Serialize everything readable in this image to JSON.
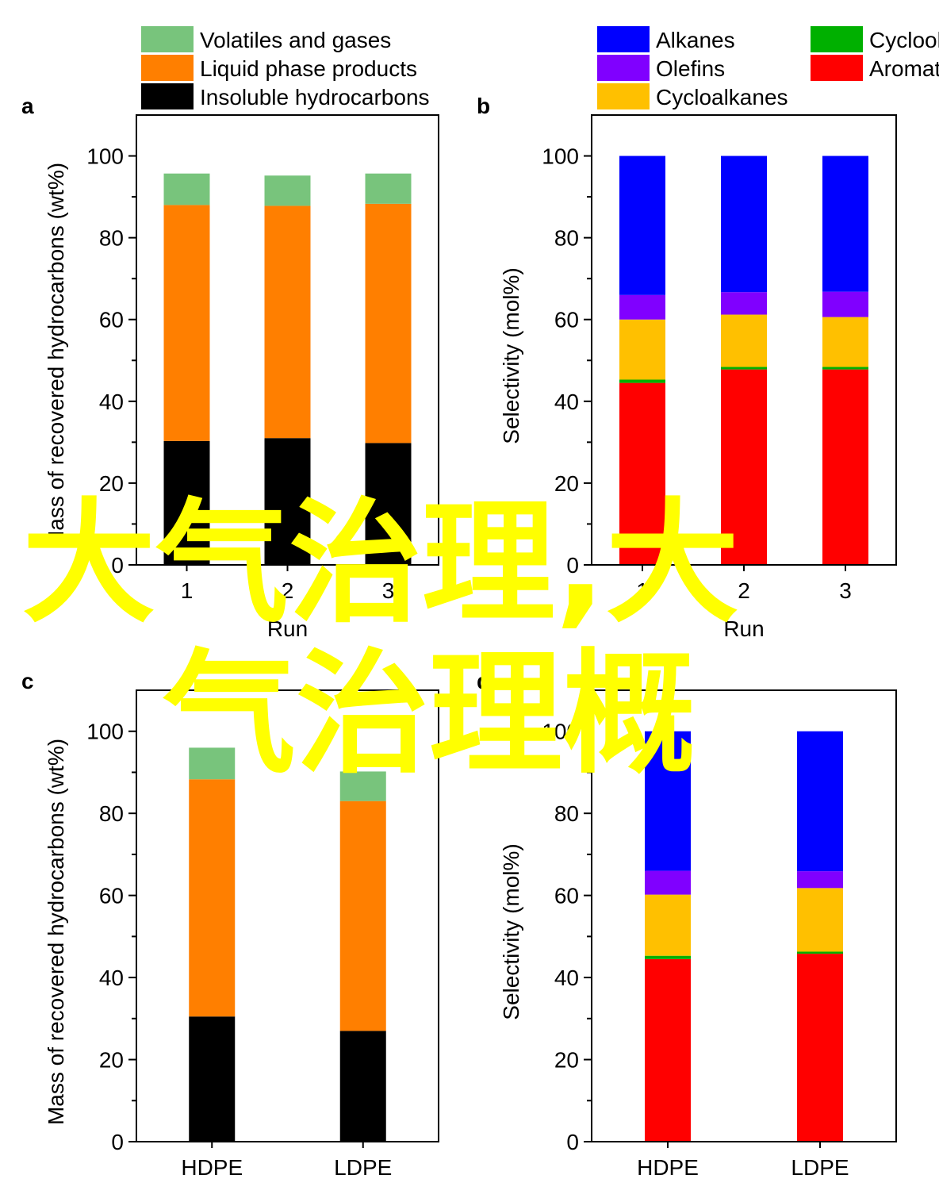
{
  "chart_data": [
    {
      "type": "stacked_bar",
      "panel": "a",
      "x_label": "Run",
      "y_label": "Mass of recovered hydrocarbons (wt%)",
      "categories": [
        "1",
        "2",
        "3"
      ],
      "ylim": [
        0,
        110
      ],
      "yticks": [
        0,
        20,
        40,
        60,
        80,
        100
      ],
      "series": [
        {
          "name": "Insoluble hydrocarbons",
          "color": "#000000",
          "values": [
            30.3,
            31,
            29.8
          ]
        },
        {
          "name": "Liquid phase products",
          "color": "#ff7f00",
          "values": [
            57.7,
            56.8,
            58.5
          ]
        },
        {
          "name": "Volatiles and gases",
          "color": "#78c47c",
          "values": [
            7.7,
            7.4,
            7.4
          ]
        }
      ]
    },
    {
      "type": "stacked_bar",
      "panel": "b",
      "x_label": "Run",
      "y_label": "Selectivity (mol%)",
      "categories": [
        "1",
        "2",
        "3"
      ],
      "ylim": [
        0,
        110
      ],
      "yticks": [
        0,
        20,
        40,
        60,
        80,
        100
      ],
      "series": [
        {
          "name": "Aromatics",
          "color": "#ff0000",
          "values": [
            44.5,
            47.8,
            47.8
          ]
        },
        {
          "name": "Cycloolefins",
          "color": "#00b000",
          "values": [
            0.8,
            0.6,
            0.6
          ]
        },
        {
          "name": "Cycloalkanes",
          "color": "#ffc000",
          "values": [
            14.7,
            12.8,
            12.2
          ]
        },
        {
          "name": "Olefins",
          "color": "#8000ff",
          "values": [
            6,
            5.5,
            6.2
          ]
        },
        {
          "name": "Alkanes",
          "color": "#0000ff",
          "values": [
            34,
            33.3,
            33.2
          ]
        }
      ]
    },
    {
      "type": "stacked_bar",
      "panel": "c",
      "y_label": "Mass of recovered hydrocarbons (wt%)",
      "categories": [
        "HDPE",
        "LDPE"
      ],
      "ylim": [
        0,
        110
      ],
      "yticks": [
        0,
        20,
        40,
        60,
        80,
        100
      ],
      "series": [
        {
          "color": "#000000",
          "values": [
            30.5,
            27
          ]
        },
        {
          "color": "#ff7f00",
          "values": [
            57.8,
            56
          ]
        },
        {
          "color": "#78c47c",
          "values": [
            7.7,
            7.2
          ]
        }
      ]
    },
    {
      "type": "stacked_bar",
      "panel": "d",
      "y_label": "Selectivity (mol%)",
      "categories": [
        "HDPE",
        "LDPE"
      ],
      "ylim": [
        0,
        110
      ],
      "yticks": [
        0,
        20,
        40,
        60,
        80,
        100
      ],
      "series": [
        {
          "color": "#ff0000",
          "values": [
            44.5,
            45.8
          ]
        },
        {
          "color": "#00b000",
          "values": [
            0.8,
            0.5
          ]
        },
        {
          "color": "#ffc000",
          "values": [
            14.9,
            15.5
          ]
        },
        {
          "color": "#8000ff",
          "values": [
            5.8,
            4.1
          ]
        },
        {
          "color": "#0000ff",
          "values": [
            34,
            34.1
          ]
        }
      ]
    }
  ],
  "overlay": [
    "大气治理,大",
    "气治理概"
  ]
}
